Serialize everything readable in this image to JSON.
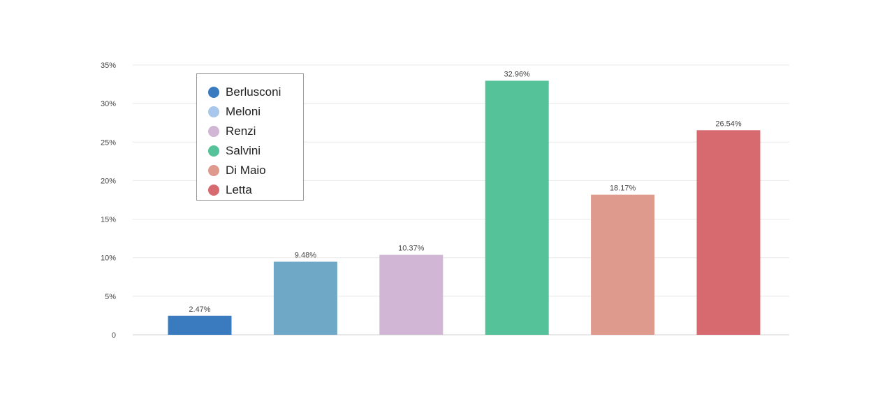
{
  "chart_data": {
    "type": "bar",
    "categories": [
      "Berlusconi",
      "Meloni",
      "Renzi",
      "Salvini",
      "Di Maio",
      "Letta"
    ],
    "values": [
      2.47,
      9.48,
      10.37,
      32.96,
      18.17,
      26.54
    ],
    "value_labels": [
      "2.47%",
      "9.48%",
      "10.37%",
      "32.96%",
      "18.17%",
      "26.54%"
    ],
    "bar_colors": [
      "#3a7bbf",
      "#6fa8c6",
      "#d2b6d6",
      "#56c29a",
      "#de9a8c",
      "#d76a6f"
    ],
    "ylim": [
      0,
      35
    ],
    "yticks": [
      0,
      5,
      10,
      15,
      20,
      25,
      30,
      35
    ],
    "ytick_labels": [
      "0",
      "5%",
      "10%",
      "15%",
      "20%",
      "25%",
      "30%",
      "35%"
    ],
    "grid": true,
    "legend": {
      "position": "top-left",
      "entries": [
        {
          "label": "Berlusconi",
          "color": "#3a7bbf"
        },
        {
          "label": "Meloni",
          "color": "#a9c7ea"
        },
        {
          "label": "Renzi",
          "color": "#d2b6d6"
        },
        {
          "label": "Salvini",
          "color": "#56c29a"
        },
        {
          "label": "Di Maio",
          "color": "#de9a8c"
        },
        {
          "label": "Letta",
          "color": "#d76a6f"
        }
      ]
    }
  }
}
